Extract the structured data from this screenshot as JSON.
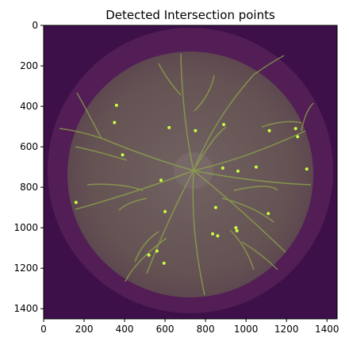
{
  "figure": {
    "title": "Detected Intersection points",
    "x_ticks": [
      "0",
      "200",
      "400",
      "600",
      "800",
      "1000",
      "1200",
      "1400"
    ],
    "y_ticks": [
      "0",
      "200",
      "400",
      "600",
      "800",
      "1000",
      "1200",
      "1400"
    ]
  },
  "image": {
    "description_colors": {
      "background": "#3b0f4a",
      "outer_ring": "#5a1f5a",
      "fundus": "#6b5a5a",
      "vessel": "#8aa040",
      "point": "#c8ff40"
    },
    "extent": [
      0,
      1450,
      1450,
      0
    ],
    "detected_points": [
      [
        360,
        395
      ],
      [
        350,
        480
      ],
      [
        620,
        505
      ],
      [
        750,
        520
      ],
      [
        890,
        490
      ],
      [
        1115,
        520
      ],
      [
        1245,
        510
      ],
      [
        1255,
        550
      ],
      [
        1300,
        710
      ],
      [
        390,
        640
      ],
      [
        885,
        705
      ],
      [
        960,
        720
      ],
      [
        1050,
        700
      ],
      [
        580,
        765
      ],
      [
        160,
        875
      ],
      [
        600,
        920
      ],
      [
        850,
        900
      ],
      [
        1110,
        930
      ],
      [
        835,
        1030
      ],
      [
        860,
        1040
      ],
      [
        950,
        1000
      ],
      [
        955,
        1015
      ],
      [
        560,
        1115
      ],
      [
        520,
        1135
      ],
      [
        595,
        1175
      ]
    ]
  }
}
